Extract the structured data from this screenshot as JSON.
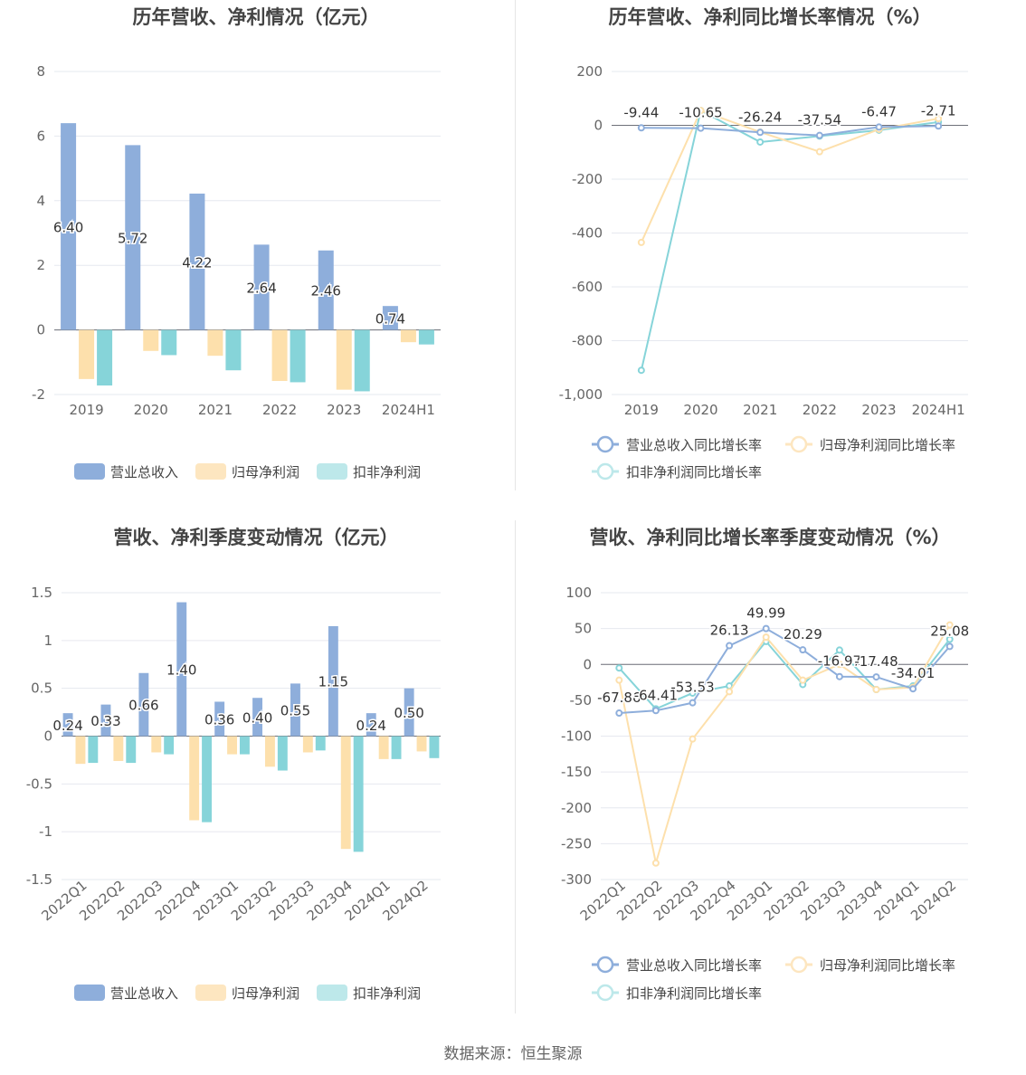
{
  "source_text": "数据来源：恒生聚源",
  "colors": {
    "revenue": "#8eaedb",
    "net_profit": "#fde0ac",
    "deducted_profit": "#86d4d9",
    "revenue_legend": "#8eaedb",
    "net_profit_legend": "#fde6c0",
    "deducted_profit_legend": "#bde8ea",
    "grid": "#e6e8ef",
    "axis": "#666666",
    "title": "#444444"
  },
  "chart_data": [
    {
      "type": "bar",
      "title": "历年营收、净利情况（亿元）",
      "categories": [
        "2019",
        "2020",
        "2021",
        "2022",
        "2023",
        "2024H1"
      ],
      "ylim": [
        -2,
        8
      ],
      "yticks": [
        "-2",
        "0",
        "2",
        "4",
        "6",
        "8"
      ],
      "series": [
        {
          "name": "营业总收入",
          "values": [
            6.4,
            5.72,
            4.22,
            2.64,
            2.46,
            0.74
          ],
          "labels": [
            "6.40",
            "5.72",
            "4.22",
            "2.64",
            "2.46",
            "0.74"
          ]
        },
        {
          "name": "归母净利润",
          "values": [
            -1.52,
            -0.65,
            -0.8,
            -1.58,
            -1.85,
            -0.38
          ]
        },
        {
          "name": "扣非净利润",
          "values": [
            -1.72,
            -0.78,
            -1.25,
            -1.62,
            -1.9,
            -0.45
          ]
        }
      ],
      "legend": "bottom"
    },
    {
      "type": "line",
      "title": "历年营收、净利同比增长率情况（%）",
      "categories": [
        "2019",
        "2020",
        "2021",
        "2022",
        "2023",
        "2024H1"
      ],
      "ylim": [
        -1000,
        200
      ],
      "yticks": [
        "-1,000",
        "-800",
        "-600",
        "-400",
        "-200",
        "0",
        "200"
      ],
      "series": [
        {
          "name": "营业总收入同比增长率",
          "values": [
            -9.44,
            -10.65,
            -26.24,
            -37.54,
            -6.47,
            -2.71
          ],
          "labels": [
            "-9.44",
            "-10.65",
            "-26.24",
            "-37.54",
            "-6.47",
            "-2.71"
          ]
        },
        {
          "name": "归母净利润同比增长率",
          "values": [
            -435,
            55,
            -25,
            -98,
            -15,
            25
          ]
        },
        {
          "name": "扣非净利润同比增长率",
          "values": [
            -910,
            55,
            -62,
            -40,
            -18,
            12
          ]
        }
      ],
      "legend": "bottom"
    },
    {
      "type": "bar",
      "title": "营收、净利季度变动情况（亿元）",
      "categories": [
        "2022Q1",
        "2022Q2",
        "2022Q3",
        "2022Q4",
        "2023Q1",
        "2023Q2",
        "2023Q3",
        "2023Q4",
        "2024Q1",
        "2024Q2"
      ],
      "ylim": [
        -1.5,
        1.5
      ],
      "yticks": [
        "-1.5",
        "-1",
        "-0.5",
        "0",
        "0.5",
        "1",
        "1.5"
      ],
      "series": [
        {
          "name": "营业总收入",
          "values": [
            0.24,
            0.33,
            0.66,
            1.4,
            0.36,
            0.4,
            0.55,
            1.15,
            0.24,
            0.5
          ],
          "labels": [
            "0.24",
            "0.33",
            "0.66",
            "1.40",
            "0.36",
            "0.40",
            "0.55",
            "1.15",
            "0.24",
            "0.50"
          ]
        },
        {
          "name": "归母净利润",
          "values": [
            -0.29,
            -0.26,
            -0.17,
            -0.88,
            -0.19,
            -0.32,
            -0.17,
            -1.18,
            -0.24,
            -0.16
          ]
        },
        {
          "name": "扣非净利润",
          "values": [
            -0.28,
            -0.28,
            -0.19,
            -0.9,
            -0.19,
            -0.36,
            -0.15,
            -1.21,
            -0.24,
            -0.23
          ]
        }
      ],
      "legend": "bottom"
    },
    {
      "type": "line",
      "title": "营收、净利同比增长率季度变动情况（%）",
      "categories": [
        "2022Q1",
        "2022Q2",
        "2022Q3",
        "2022Q4",
        "2023Q1",
        "2023Q2",
        "2023Q3",
        "2023Q4",
        "2024Q1",
        "2024Q2"
      ],
      "ylim": [
        -300,
        100
      ],
      "yticks": [
        "-300",
        "-250",
        "-200",
        "-150",
        "-100",
        "-50",
        "0",
        "50",
        "100"
      ],
      "series": [
        {
          "name": "营业总收入同比增长率",
          "values": [
            -67.86,
            -64.41,
            -53.53,
            26.13,
            49.99,
            20.29,
            -16.97,
            -17.48,
            -34.01,
            25.08
          ],
          "labels": [
            "-67.86",
            "-64.41",
            "-53.53",
            "26.13",
            "49.99",
            "20.29",
            "-16.97",
            "-17.48",
            "-34.01",
            "25.08"
          ]
        },
        {
          "name": "归母净利润同比增长率",
          "values": [
            -22,
            -277,
            -104,
            -38,
            38,
            -22,
            0,
            -35,
            -32,
            55
          ]
        },
        {
          "name": "扣非净利润同比增长率",
          "values": [
            -5,
            -62,
            -40,
            -30,
            32,
            -28,
            20,
            -35,
            -30,
            35
          ]
        }
      ],
      "legend": "bottom"
    }
  ]
}
